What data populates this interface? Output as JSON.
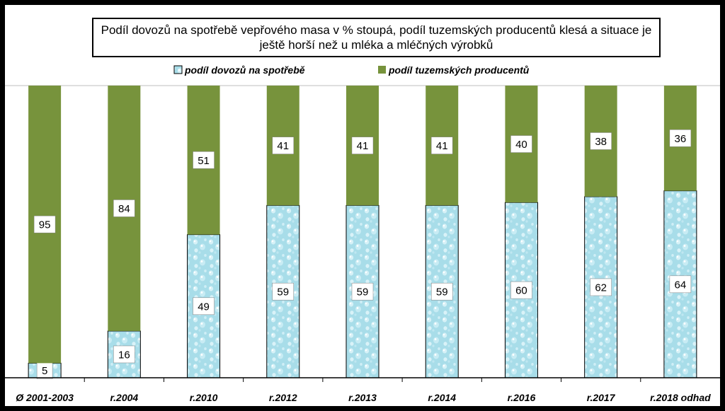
{
  "chart_data": {
    "type": "bar",
    "stacked": true,
    "title": "Podíl dovozů na spotřebě vepřového masa v % stoupá, podíl tuzemských producentů klesá a situace je ještě horší než u mléka a mléčných výrobků",
    "categories": [
      "Ø 2001-2003",
      "r.2004",
      "r.2010",
      "r.2012",
      "r.2013",
      "r.2014",
      "r.2016",
      "r.2017",
      "r.2018 odhad"
    ],
    "series": [
      {
        "name": "podíl dovozů na spotřebě",
        "values": [
          5,
          16,
          49,
          59,
          59,
          59,
          60,
          62,
          64
        ],
        "color": "#a8dde9",
        "pattern": "water-drops"
      },
      {
        "name": "podíl tuzemských producentů",
        "values": [
          95,
          84,
          51,
          41,
          41,
          41,
          40,
          38,
          36
        ],
        "color": "#77933c"
      }
    ],
    "ylim": [
      0,
      100
    ],
    "xlabel": "",
    "ylabel": "",
    "legend_position": "top",
    "grid": false
  }
}
